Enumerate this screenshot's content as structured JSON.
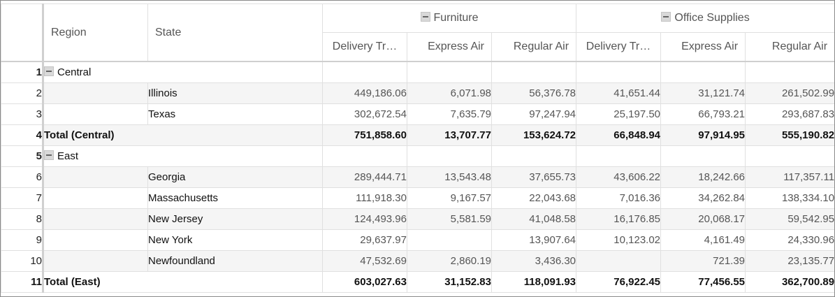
{
  "header": {
    "region_label": "Region",
    "state_label": "State",
    "groups": [
      "Furniture",
      "Office Supplies"
    ],
    "columns": [
      "Delivery Tr…",
      "Express Air",
      "Regular Air",
      "Delivery Tr…",
      "Express Air",
      "Regular Air"
    ]
  },
  "rows": [
    {
      "num": "1",
      "type": "group",
      "region": "Central",
      "state": "",
      "values": [
        "",
        "",
        "",
        "",
        "",
        ""
      ]
    },
    {
      "num": "2",
      "type": "data",
      "region": "",
      "state": "Illinois",
      "values": [
        "449,186.06",
        "6,071.98",
        "56,376.78",
        "41,651.44",
        "31,121.74",
        "261,502.99"
      ]
    },
    {
      "num": "3",
      "type": "data",
      "region": "",
      "state": "Texas",
      "values": [
        "302,672.54",
        "7,635.79",
        "97,247.94",
        "25,197.50",
        "66,793.21",
        "293,687.83"
      ]
    },
    {
      "num": "4",
      "type": "total",
      "region": "Total (Central)",
      "state": "",
      "values": [
        "751,858.60",
        "13,707.77",
        "153,624.72",
        "66,848.94",
        "97,914.95",
        "555,190.82"
      ]
    },
    {
      "num": "5",
      "type": "group",
      "region": "East",
      "state": "",
      "values": [
        "",
        "",
        "",
        "",
        "",
        ""
      ]
    },
    {
      "num": "6",
      "type": "data",
      "region": "",
      "state": "Georgia",
      "values": [
        "289,444.71",
        "13,543.48",
        "37,655.73",
        "43,606.22",
        "18,242.66",
        "117,357.11"
      ]
    },
    {
      "num": "7",
      "type": "data",
      "region": "",
      "state": "Massachusetts",
      "values": [
        "111,918.30",
        "9,167.57",
        "22,043.68",
        "7,016.36",
        "34,262.84",
        "138,334.10"
      ]
    },
    {
      "num": "8",
      "type": "data",
      "region": "",
      "state": "New Jersey",
      "values": [
        "124,493.96",
        "5,581.59",
        "41,048.58",
        "16,176.85",
        "20,068.17",
        "59,542.95"
      ]
    },
    {
      "num": "9",
      "type": "data",
      "region": "",
      "state": "New York",
      "values": [
        "29,637.97",
        "",
        "13,907.64",
        "10,123.02",
        "4,161.49",
        "24,330.96"
      ]
    },
    {
      "num": "10",
      "type": "data",
      "region": "",
      "state": "Newfoundland",
      "values": [
        "47,532.69",
        "2,860.19",
        "3,436.30",
        "",
        "721.39",
        "23,135.77"
      ]
    },
    {
      "num": "11",
      "type": "total",
      "region": "Total (East)",
      "state": "",
      "values": [
        "603,027.63",
        "31,152.83",
        "118,091.93",
        "76,922.45",
        "77,456.55",
        "362,700.89"
      ]
    }
  ],
  "colors": {
    "alt_row": "#f5f5f5",
    "grid": "#e0e0e0",
    "header_text": "#555555"
  },
  "icons": [
    "collapse-icon"
  ]
}
